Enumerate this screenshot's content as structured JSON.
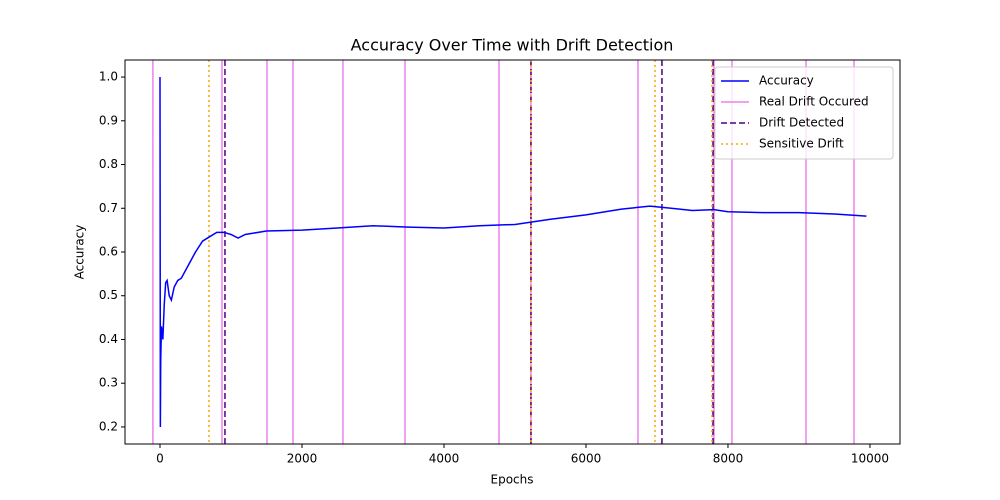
{
  "chart_data": {
    "type": "line",
    "title": "Accuracy Over Time with Drift Detection",
    "xlabel": "Epochs",
    "ylabel": "Accuracy",
    "xlim": [
      -493,
      10423
    ],
    "ylim": [
      0.161,
      1.039
    ],
    "xticks": [
      0,
      2000,
      4000,
      6000,
      8000,
      10000
    ],
    "yticks": [
      0.2,
      0.3,
      0.4,
      0.5,
      0.6,
      0.7,
      0.8,
      0.9,
      {
        "value": 1.0,
        "label": "1.0"
      }
    ],
    "legend": "upper right",
    "series": [
      {
        "name": "Accuracy",
        "color": "#0000ff",
        "x": [
          0,
          5,
          10,
          20,
          40,
          60,
          80,
          100,
          130,
          160,
          200,
          250,
          300,
          400,
          500,
          600,
          700,
          800,
          900,
          1000,
          1100,
          1200,
          1500,
          2000,
          2500,
          3000,
          3500,
          4000,
          4500,
          5000,
          5500,
          6000,
          6500,
          6900,
          7200,
          7500,
          7800,
          8000,
          8500,
          9000,
          9500,
          9950
        ],
        "values": [
          1.0,
          0.2,
          0.35,
          0.43,
          0.4,
          0.48,
          0.53,
          0.535,
          0.5,
          0.49,
          0.52,
          0.535,
          0.54,
          0.57,
          0.6,
          0.625,
          0.635,
          0.645,
          0.645,
          0.64,
          0.632,
          0.64,
          0.648,
          0.65,
          0.655,
          0.66,
          0.657,
          0.655,
          0.66,
          0.663,
          0.675,
          0.685,
          0.698,
          0.705,
          0.7,
          0.695,
          0.697,
          0.692,
          0.69,
          0.69,
          0.687,
          0.682
        ]
      }
    ],
    "vlines": [
      {
        "name": "Real Drift Occured",
        "color": "#ee82ee",
        "style": "solid",
        "x": [
          -100,
          873,
          1507,
          1873,
          2577,
          3451,
          4775,
          5225,
          6732,
          7803,
          8056,
          9099,
          9775
        ]
      },
      {
        "name": "Drift Detected",
        "color": "#4b0082",
        "style": "dashed",
        "x": [
          915,
          5225,
          7070,
          7789
        ]
      },
      {
        "name": "Sensitive Drift",
        "color": "#ffa500",
        "style": "dotted",
        "x": [
          690,
          5225,
          6972,
          7775
        ]
      }
    ]
  }
}
